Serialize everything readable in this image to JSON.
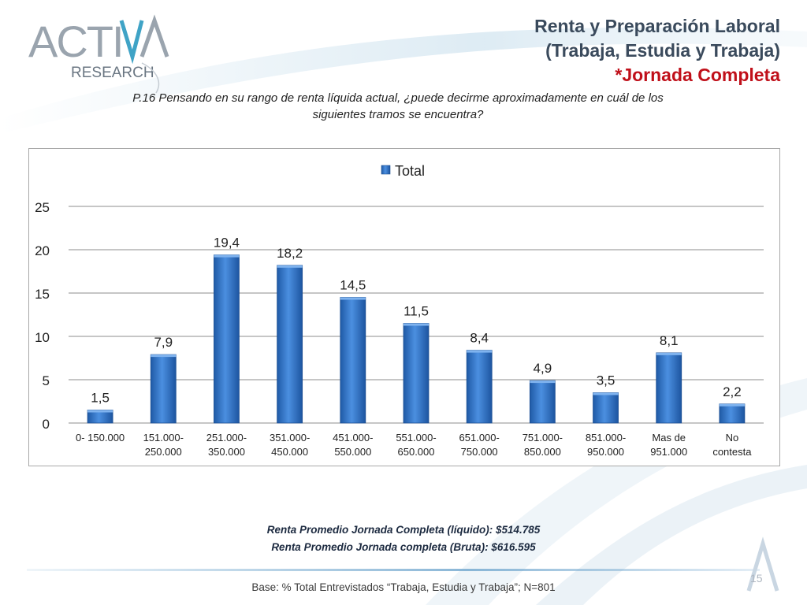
{
  "logo": {
    "name": "ACTIVA",
    "sub": "RESEARCH"
  },
  "title": {
    "line1": "Renta y Preparación Laboral",
    "line2": "(Trabaja, Estudia y Trabaja)",
    "line3": "*Jornada Completa"
  },
  "question": {
    "line1": "P.16  Pensando en su rango de renta líquida actual, ¿puede decirme aproximadamente en cuál de los",
    "line2": "siguientes tramos se encuentra?"
  },
  "chart_data": {
    "type": "bar",
    "categories": [
      [
        "0- 150.000"
      ],
      [
        "151.000-",
        "250.000"
      ],
      [
        "251.000-",
        "350.000"
      ],
      [
        "351.000-",
        "450.000"
      ],
      [
        "451.000-",
        "550.000"
      ],
      [
        "551.000-",
        "650.000"
      ],
      [
        "651.000-",
        "750.000"
      ],
      [
        "751.000-",
        "850.000"
      ],
      [
        "851.000-",
        "950.000"
      ],
      [
        "Mas de",
        "951.000"
      ],
      [
        "No",
        "contesta"
      ]
    ],
    "series": [
      {
        "name": "Total",
        "values": [
          1.5,
          7.9,
          19.4,
          18.2,
          14.5,
          11.5,
          8.4,
          4.9,
          3.5,
          8.1,
          2.2
        ],
        "labels": [
          "1,5",
          "7,9",
          "19,4",
          "18,2",
          "14,5",
          "11,5",
          "8,4",
          "4,9",
          "3,5",
          "8,1",
          "2,2"
        ]
      }
    ],
    "ylim": [
      0,
      25
    ],
    "yticks": [
      0,
      5,
      10,
      15,
      20,
      25
    ],
    "grid": true,
    "legend": "top-center",
    "bar_color": "#2e6fbf"
  },
  "averages": {
    "line1": "Renta Promedio Jornada Completa (líquido): $514.785",
    "line2": "Renta Promedio Jornada completa (Bruta): $616.595"
  },
  "base": "Base: % Total Entrevistados “Trabaja, Estudia y Trabaja”; N=801",
  "page_number": "15"
}
